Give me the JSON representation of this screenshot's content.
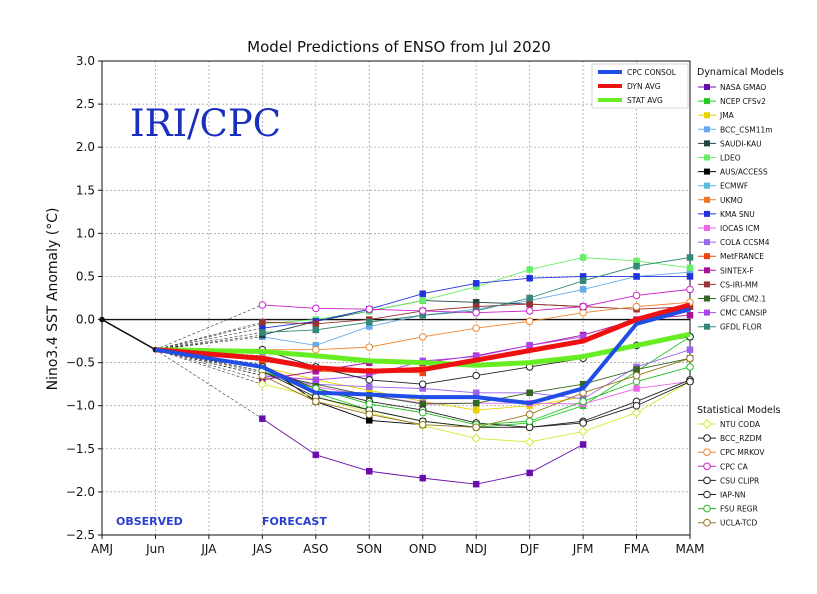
{
  "chart_data": {
    "type": "line",
    "title": "Model Predictions of ENSO from Jul 2020",
    "ylabel": "Nino3.4 SST Anomaly (°C)",
    "xlabel": "",
    "watermark": "IRI/CPC",
    "observed_label": "OBSERVED",
    "forecast_label": "FORECAST",
    "categories": [
      "AMJ",
      "Jun",
      "JJA",
      "JAS",
      "ASO",
      "SON",
      "OND",
      "NDJ",
      "DJF",
      "JFM",
      "FMA",
      "MAM"
    ],
    "ylim": [
      -2.5,
      3.0
    ],
    "yticks": [
      "3.0",
      "2.5",
      "2.0",
      "1.5",
      "1.0",
      "0.5",
      "0.0",
      "−0.5",
      "−1.0",
      "−1.5",
      "−2.0",
      "−2.5"
    ],
    "grid": true,
    "observed": [
      0.0,
      -0.35
    ],
    "summary_series": [
      {
        "name": "CPC CONSOL",
        "color": "#1f4de6",
        "values": [
          null,
          null,
          null,
          -0.55,
          -0.85,
          -0.87,
          -0.9,
          -0.9,
          -0.97,
          -0.8,
          -0.05,
          0.12
        ]
      },
      {
        "name": "DYN AVG",
        "color": "#ee1111",
        "values": [
          null,
          null,
          null,
          -0.45,
          -0.56,
          -0.6,
          -0.58,
          -0.47,
          -0.36,
          -0.25,
          0.0,
          0.17
        ]
      },
      {
        "name": "STAT AVG",
        "color": "#66ee22",
        "values": [
          null,
          null,
          null,
          -0.37,
          -0.42,
          -0.48,
          -0.5,
          -0.53,
          -0.5,
          -0.43,
          -0.3,
          -0.17
        ]
      }
    ],
    "dynamical_title": "Dynamical Models",
    "dynamical_models": [
      {
        "name": "NASA GMAO",
        "color": "#6a0dad",
        "marker": "square",
        "values": [
          null,
          null,
          null,
          -1.15,
          -1.57,
          -1.76,
          -1.84,
          -1.91,
          -1.78,
          -1.45,
          null,
          null
        ]
      },
      {
        "name": "NCEP CFSv2",
        "color": "#22cc22",
        "marker": "square",
        "values": [
          null,
          null,
          null,
          -0.6,
          -0.85,
          -1.05,
          -1.18,
          -1.25,
          -1.2,
          -1.0,
          -0.6,
          -0.2
        ]
      },
      {
        "name": "JMA",
        "color": "#e8d200",
        "marker": "square",
        "values": [
          null,
          null,
          null,
          -0.55,
          -0.7,
          -0.82,
          -0.95,
          -1.05,
          -1.0,
          -0.9,
          null,
          null
        ]
      },
      {
        "name": "BCC_CSM11m",
        "color": "#66aaee",
        "marker": "square",
        "values": [
          null,
          null,
          null,
          -0.2,
          -0.3,
          -0.08,
          0.05,
          0.12,
          0.22,
          0.35,
          0.5,
          0.55
        ]
      },
      {
        "name": "SAUDI-KAU",
        "color": "#224444",
        "marker": "square",
        "values": [
          null,
          null,
          null,
          -0.18,
          -0.02,
          0.1,
          0.22,
          0.2,
          0.18,
          0.15,
          null,
          null
        ]
      },
      {
        "name": "LDEO",
        "color": "#66ee66",
        "marker": "square",
        "values": [
          null,
          null,
          null,
          -0.05,
          0.0,
          0.1,
          0.22,
          0.38,
          0.58,
          0.72,
          0.68,
          0.6
        ]
      },
      {
        "name": "AUS/ACCESS",
        "color": "#000000",
        "marker": "square",
        "values": [
          null,
          null,
          null,
          -0.52,
          -0.95,
          -1.17,
          -1.22,
          null,
          null,
          null,
          null,
          null
        ]
      },
      {
        "name": "ECMWF",
        "color": "#55bbdd",
        "marker": "square",
        "values": [
          null,
          null,
          null,
          -0.42,
          -0.55,
          -0.62,
          -0.6,
          null,
          null,
          null,
          null,
          null
        ]
      },
      {
        "name": "UKMO",
        "color": "#ee7722",
        "marker": "square",
        "values": [
          null,
          null,
          null,
          -0.45,
          -0.6,
          -0.62,
          -0.55,
          null,
          null,
          null,
          null,
          null
        ]
      },
      {
        "name": "KMA SNU",
        "color": "#2233dd",
        "marker": "square",
        "values": [
          null,
          null,
          null,
          -0.1,
          -0.02,
          0.12,
          0.3,
          0.42,
          0.48,
          0.5,
          0.5,
          0.5
        ]
      },
      {
        "name": "IOCAS ICM",
        "color": "#ee66ee",
        "marker": "square",
        "values": [
          null,
          null,
          null,
          -0.55,
          -0.78,
          -0.88,
          -0.97,
          -0.97,
          -0.97,
          -0.98,
          -0.8,
          -0.72
        ]
      },
      {
        "name": "COLA CCSM4",
        "color": "#9966ee",
        "marker": "square",
        "values": [
          null,
          null,
          null,
          -0.65,
          -0.75,
          -0.78,
          -0.8,
          -0.85,
          -0.85,
          -0.92,
          -0.55,
          -0.35
        ]
      },
      {
        "name": "MetFRANCE",
        "color": "#ee4411",
        "marker": "square",
        "values": [
          null,
          null,
          null,
          -0.48,
          -0.58,
          -0.6,
          -0.62,
          null,
          null,
          null,
          null,
          null
        ]
      },
      {
        "name": "SINTEX-F",
        "color": "#aa1199",
        "marker": "square",
        "values": [
          null,
          null,
          null,
          -0.7,
          -0.6,
          -0.5,
          -0.5,
          -0.42,
          -0.3,
          -0.18,
          0.0,
          0.05
        ]
      },
      {
        "name": "CS-IRI-MM",
        "color": "#993333",
        "marker": "square",
        "values": [
          null,
          null,
          null,
          -0.03,
          -0.05,
          0.0,
          0.1,
          0.15,
          0.18,
          0.15,
          0.12,
          0.15
        ]
      },
      {
        "name": "GFDL CM2.1",
        "color": "#336622",
        "marker": "square",
        "values": [
          null,
          null,
          null,
          -0.62,
          -0.75,
          -0.88,
          -0.98,
          -0.97,
          -0.85,
          -0.75,
          -0.58,
          -0.45
        ]
      },
      {
        "name": "CMC CANSIP",
        "color": "#aa44ee",
        "marker": "square",
        "values": [
          null,
          null,
          null,
          -0.65,
          -0.7,
          -0.65,
          -0.48,
          -0.43,
          -0.3,
          -0.2,
          null,
          null
        ]
      },
      {
        "name": "GFDL FLOR",
        "color": "#338877",
        "marker": "square",
        "values": [
          null,
          null,
          null,
          -0.15,
          -0.12,
          -0.03,
          0.05,
          0.1,
          0.25,
          0.45,
          0.62,
          0.72
        ]
      }
    ],
    "statistical_title": "Statistical Models",
    "statistical_models": [
      {
        "name": "NTU CODA",
        "color": "#ccee33",
        "marker": "diamond",
        "values": [
          null,
          null,
          null,
          -0.75,
          -0.9,
          -1.08,
          -1.23,
          -1.38,
          -1.42,
          -1.3,
          -1.08,
          -0.72
        ]
      },
      {
        "name": "BCC_RZDM",
        "color": "#222222",
        "marker": "circle",
        "values": [
          null,
          null,
          null,
          -0.6,
          -0.9,
          -1.05,
          -1.18,
          -1.25,
          -1.25,
          -1.18,
          -0.95,
          -0.7
        ]
      },
      {
        "name": "CPC MRKOV",
        "color": "#ee8833",
        "marker": "circle",
        "values": [
          null,
          null,
          null,
          -0.35,
          -0.35,
          -0.32,
          -0.2,
          -0.1,
          -0.02,
          0.08,
          0.15,
          0.2
        ]
      },
      {
        "name": "CPC CA",
        "color": "#cc22cc",
        "marker": "circle",
        "values": [
          null,
          null,
          null,
          0.17,
          0.13,
          0.12,
          0.1,
          0.08,
          0.1,
          0.15,
          0.28,
          0.35
        ]
      },
      {
        "name": "CSU CLIPR",
        "color": "#222222",
        "marker": "circle",
        "values": [
          null,
          null,
          null,
          -0.35,
          -0.55,
          -0.7,
          -0.75,
          -0.65,
          -0.55,
          -0.45,
          -0.3,
          -0.2
        ]
      },
      {
        "name": "IAP-NN",
        "color": "#222222",
        "marker": "circle",
        "values": [
          null,
          null,
          null,
          -0.55,
          -0.8,
          -0.95,
          -1.05,
          -1.2,
          -1.25,
          -1.2,
          -1.0,
          -0.72
        ]
      },
      {
        "name": "FSU REGR",
        "color": "#22bb22",
        "marker": "circle",
        "values": [
          null,
          null,
          null,
          -0.6,
          -0.8,
          -0.98,
          -1.08,
          -1.22,
          -1.18,
          -0.95,
          -0.72,
          -0.55
        ]
      },
      {
        "name": "UCLA-TCD",
        "color": "#997722",
        "marker": "circle",
        "values": [
          null,
          null,
          null,
          -0.65,
          -0.95,
          -1.1,
          -1.22,
          -1.25,
          -1.1,
          -0.85,
          -0.65,
          -0.45
        ]
      }
    ]
  }
}
